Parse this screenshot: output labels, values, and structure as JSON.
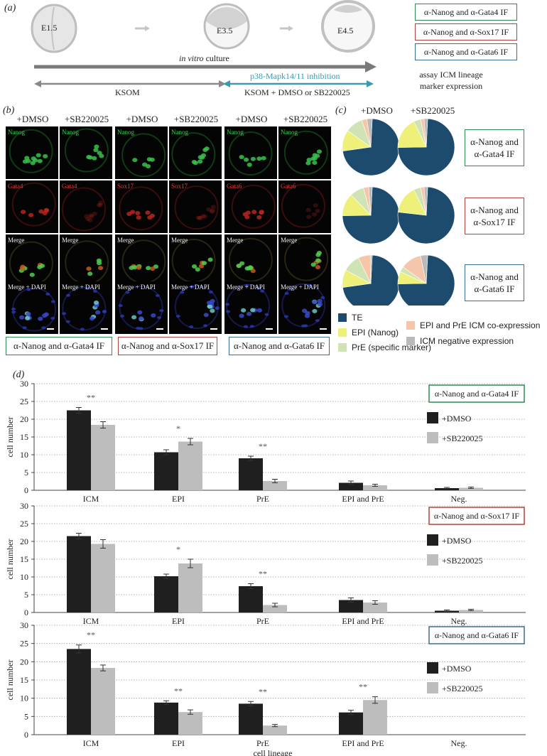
{
  "panel_a": {
    "label": "(a)",
    "stages": [
      "E1.5",
      "E3.5",
      "E4.5"
    ],
    "culture_italic": "in vitro",
    "culture_rest": "culture",
    "ksom": "KSOM",
    "inhibition": "p38-Mapk14/11 inhibition",
    "treatment": "KSOM + DMSO or SB220025",
    "assay_boxes": [
      "α-Nanog and α-Gata4 IF",
      "α-Nanog and α-Sox17 IF",
      "α-Nanog and α-Gata6 IF"
    ],
    "assay_caption": "assay ICM lineage marker expression"
  },
  "panel_b": {
    "label": "(b)",
    "col_heads": [
      "+DMSO",
      "+SB220025",
      "+DMSO",
      "+SB220025",
      "+DMSO",
      "+SB220025"
    ],
    "row_labels": [
      [
        "Nanog",
        "Nanog",
        "Nanog",
        "Nanog",
        "Nanog",
        "Nanog"
      ],
      [
        "Gata4",
        "Gata4",
        "Sox17",
        "Sox17",
        "Gata6",
        "Gata6"
      ],
      [
        "Merge",
        "Merge",
        "Merge",
        "Merge",
        "Merge",
        "Merge"
      ],
      [
        "Merge + DAPI",
        "Merge + DAPI",
        "Merge + DAPI",
        "Merge + DAPI",
        "Merge + DAPI",
        "Merge + DAPI"
      ]
    ],
    "group_boxes": [
      "α-Nanog and α-Gata4 IF",
      "α-Nanog and α-Sox17 IF",
      "α-Nanog and α-Gata6 IF"
    ]
  },
  "panel_c": {
    "label": "(c)",
    "col_heads": [
      "+DMSO",
      "+SB220025"
    ],
    "row_boxes": [
      "α-Nanog and α-Gata4 IF",
      "α-Nanog and α-Sox17 IF",
      "α-Nanog and α-Gata6 IF"
    ],
    "key": [
      {
        "label": "TE",
        "color": "#1d4b6e"
      },
      {
        "label": "EPI (Nanog)",
        "color": "#eef07a"
      },
      {
        "label": "PrE (specific marker)",
        "color": "#cfe3b4"
      },
      {
        "label": "EPI and PrE ICM co-expression",
        "color": "#f6c6aa"
      },
      {
        "label": "ICM negative expression",
        "color": "#b9b9b9"
      }
    ],
    "pies": [
      [
        [
          0.72,
          0.12,
          0.1,
          0.03,
          0.03
        ],
        [
          0.74,
          0.18,
          0.04,
          0.02,
          0.02
        ]
      ],
      [
        [
          0.74,
          0.13,
          0.08,
          0.03,
          0.02
        ],
        [
          0.76,
          0.16,
          0.04,
          0.02,
          0.02
        ]
      ],
      [
        [
          0.72,
          0.1,
          0.1,
          0.07,
          0.01
        ],
        [
          0.74,
          0.07,
          0.03,
          0.12,
          0.04
        ]
      ]
    ]
  },
  "panel_d": {
    "label": "(d)",
    "ylabel": "cell number",
    "xlabel": "cell lineage",
    "legend": [
      "+DMSO",
      "+SB220025"
    ],
    "colors": {
      "dmso": "#1f1f1f",
      "sb": "#bdbdbd"
    }
  },
  "chart_data": [
    {
      "type": "bar",
      "title": "α-Nanog and α-Gata4 IF",
      "categories": [
        "ICM",
        "EPI",
        "PrE",
        "EPI and PrE",
        "Neg."
      ],
      "series": [
        {
          "name": "+DMSO",
          "values": [
            22.5,
            10.7,
            9.0,
            2.1,
            0.6
          ],
          "errors": [
            0.8,
            0.7,
            0.6,
            0.5,
            0.2
          ]
        },
        {
          "name": "+SB220025",
          "values": [
            18.4,
            13.7,
            2.6,
            1.4,
            0.7
          ],
          "errors": [
            0.9,
            0.9,
            0.5,
            0.3,
            0.2
          ]
        }
      ],
      "annotations": [
        "**",
        "*",
        "**",
        "",
        ""
      ],
      "ylabel": "cell number",
      "ylim": [
        0,
        30
      ],
      "yticks": [
        0,
        5,
        10,
        15,
        20,
        25,
        30
      ]
    },
    {
      "type": "bar",
      "title": "α-Nanog and α-Sox17 IF",
      "categories": [
        "ICM",
        "EPI",
        "PrE",
        "EPI and PrE",
        "Neg."
      ],
      "series": [
        {
          "name": "+DMSO",
          "values": [
            21.5,
            10.2,
            7.4,
            3.5,
            0.5
          ],
          "errors": [
            0.8,
            0.6,
            0.7,
            0.6,
            0.2
          ]
        },
        {
          "name": "+SB220025",
          "values": [
            19.3,
            13.8,
            2.1,
            2.8,
            0.7
          ],
          "errors": [
            1.2,
            1.2,
            0.5,
            0.5,
            0.2
          ]
        }
      ],
      "annotations": [
        "",
        "*",
        "**",
        "",
        ""
      ],
      "ylabel": "cell number",
      "ylim": [
        0,
        30
      ],
      "yticks": [
        0,
        5,
        10,
        15,
        20,
        25,
        30
      ]
    },
    {
      "type": "bar",
      "title": "α-Nanog and α-Gata6 IF",
      "categories": [
        "ICM",
        "EPI",
        "PrE",
        "EPI and PrE",
        "Neg."
      ],
      "series": [
        {
          "name": "+DMSO",
          "values": [
            23.5,
            8.8,
            8.5,
            6.1,
            0.0
          ],
          "errors": [
            1.1,
            0.5,
            0.6,
            0.6,
            0.0
          ]
        },
        {
          "name": "+SB220025",
          "values": [
            18.3,
            6.2,
            2.5,
            9.5,
            0.0
          ],
          "errors": [
            0.8,
            0.6,
            0.3,
            0.9,
            0.0
          ]
        }
      ],
      "annotations": [
        "**",
        "**",
        "**",
        "**",
        ""
      ],
      "ylabel": "cell number",
      "xlabel": "cell lineage",
      "ylim": [
        0,
        30
      ],
      "yticks": [
        0,
        5,
        10,
        15,
        20,
        25,
        30
      ]
    }
  ]
}
